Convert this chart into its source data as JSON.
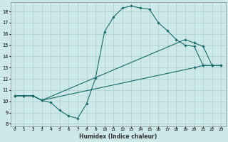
{
  "xlabel": "Humidex (Indice chaleur)",
  "xlim": [
    -0.5,
    23.5
  ],
  "ylim": [
    7.8,
    18.8
  ],
  "xticks": [
    0,
    1,
    2,
    3,
    4,
    5,
    6,
    7,
    8,
    9,
    10,
    11,
    12,
    13,
    14,
    15,
    16,
    17,
    18,
    19,
    20,
    21,
    22,
    23
  ],
  "yticks": [
    8,
    9,
    10,
    11,
    12,
    13,
    14,
    15,
    16,
    17,
    18
  ],
  "bg_color": "#cce8e8",
  "grid_color": "#aacece",
  "line_color": "#1a6b6b",
  "line1_x": [
    0,
    1,
    2,
    3,
    4,
    5,
    6,
    7,
    8,
    9,
    10,
    11,
    12,
    13,
    14,
    15,
    16,
    17,
    18,
    19,
    20,
    21,
    22
  ],
  "line1_y": [
    10.5,
    10.5,
    10.5,
    10.1,
    9.9,
    9.2,
    8.7,
    8.5,
    9.8,
    12.1,
    16.2,
    17.5,
    18.3,
    18.5,
    18.3,
    18.2,
    17.0,
    16.3,
    15.5,
    15.0,
    14.9,
    13.2,
    13.2
  ],
  "line2_x": [
    0,
    1,
    2,
    3,
    19,
    20,
    21,
    22,
    23
  ],
  "line2_y": [
    10.5,
    10.5,
    10.5,
    10.1,
    15.5,
    15.2,
    14.9,
    13.2,
    13.2
  ],
  "line3_x": [
    0,
    1,
    2,
    3,
    20,
    21,
    22,
    23
  ],
  "line3_y": [
    10.5,
    10.5,
    10.5,
    10.1,
    13.0,
    13.2,
    13.2,
    13.2
  ]
}
